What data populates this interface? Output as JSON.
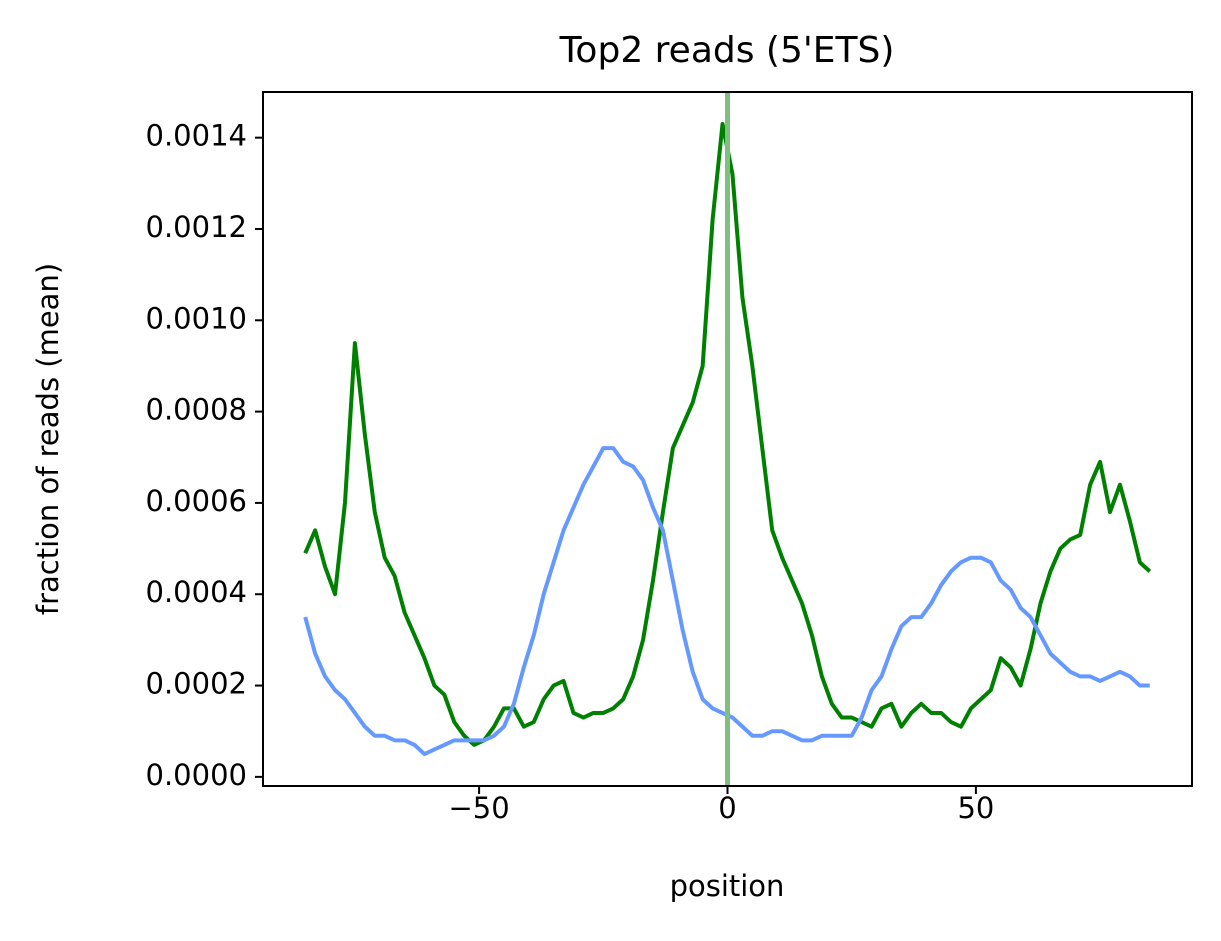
{
  "chart_data": {
    "type": "line",
    "title": "Top2 reads (5'ETS)",
    "x_label": "position",
    "y_label": "fraction of reads (mean)",
    "x": [
      -85,
      -83,
      -81,
      -79,
      -77,
      -75,
      -73,
      -71,
      -69,
      -67,
      -65,
      -63,
      -61,
      -59,
      -57,
      -55,
      -53,
      -51,
      -49,
      -47,
      -45,
      -43,
      -41,
      -39,
      -37,
      -35,
      -33,
      -31,
      -29,
      -27,
      -25,
      -23,
      -21,
      -19,
      -17,
      -15,
      -13,
      -11,
      -9,
      -7,
      -5,
      -3,
      -1,
      1,
      3,
      5,
      7,
      9,
      11,
      13,
      15,
      17,
      19,
      21,
      23,
      25,
      27,
      29,
      31,
      33,
      35,
      37,
      39,
      41,
      43,
      45,
      47,
      49,
      51,
      53,
      55,
      57,
      59,
      61,
      63,
      65,
      67,
      69,
      71,
      73,
      75,
      77,
      79,
      81,
      83,
      85
    ],
    "series": [
      {
        "color": "#008000",
        "values": [
          0.00049,
          0.00054,
          0.00046,
          0.0004,
          0.0006,
          0.00095,
          0.00075,
          0.00058,
          0.00048,
          0.00044,
          0.00036,
          0.00031,
          0.00026,
          0.0002,
          0.00018,
          0.00012,
          9e-05,
          7e-05,
          8e-05,
          0.00011,
          0.00015,
          0.00015,
          0.00011,
          0.00012,
          0.00017,
          0.0002,
          0.00021,
          0.00014,
          0.00013,
          0.00014,
          0.00014,
          0.00015,
          0.00017,
          0.00022,
          0.0003,
          0.00043,
          0.00058,
          0.00072,
          0.00077,
          0.00082,
          0.0009,
          0.00122,
          0.00143,
          0.00132,
          0.00105,
          0.0009,
          0.00072,
          0.00054,
          0.00048,
          0.00043,
          0.00038,
          0.00031,
          0.00022,
          0.00016,
          0.00013,
          0.00013,
          0.00012,
          0.00011,
          0.00015,
          0.00016,
          0.00011,
          0.00014,
          0.00016,
          0.00014,
          0.00014,
          0.00012,
          0.00011,
          0.00015,
          0.00017,
          0.00019,
          0.00026,
          0.00024,
          0.0002,
          0.00028,
          0.00038,
          0.00045,
          0.0005,
          0.00052,
          0.00053,
          0.00064,
          0.00069,
          0.00058,
          0.00064,
          0.00056,
          0.00047,
          0.00045
        ]
      },
      {
        "color": "#6699ff",
        "values": [
          0.00035,
          0.00027,
          0.00022,
          0.00019,
          0.00017,
          0.00014,
          0.00011,
          9e-05,
          9e-05,
          8e-05,
          8e-05,
          7e-05,
          5e-05,
          6e-05,
          7e-05,
          8e-05,
          8e-05,
          8e-05,
          8e-05,
          9e-05,
          0.00011,
          0.00016,
          0.00024,
          0.00031,
          0.0004,
          0.00047,
          0.00054,
          0.00059,
          0.00064,
          0.00068,
          0.00072,
          0.00072,
          0.00069,
          0.00068,
          0.00065,
          0.00059,
          0.00054,
          0.00043,
          0.00032,
          0.00023,
          0.00017,
          0.00015,
          0.00014,
          0.00013,
          0.00011,
          9e-05,
          9e-05,
          0.0001,
          0.0001,
          9e-05,
          8e-05,
          8e-05,
          9e-05,
          9e-05,
          9e-05,
          9e-05,
          0.00013,
          0.00019,
          0.00022,
          0.00028,
          0.00033,
          0.00035,
          0.00035,
          0.00038,
          0.00042,
          0.00045,
          0.00047,
          0.00048,
          0.00048,
          0.00047,
          0.00043,
          0.00041,
          0.00037,
          0.00035,
          0.00031,
          0.00027,
          0.00025,
          0.00023,
          0.00022,
          0.00022,
          0.00021,
          0.00022,
          0.00023,
          0.00022,
          0.0002,
          0.0002
        ]
      }
    ],
    "vline": {
      "x": 0,
      "color": "#7fbf7f"
    },
    "xlim": [
      -93.5,
      93.5
    ],
    "xticks": [
      {
        "value": -50,
        "label": "−50"
      },
      0,
      50
    ],
    "ylim": [
      -2e-05,
      0.0015
    ],
    "yticks": [
      {
        "value": 0,
        "label": "0.0000"
      },
      {
        "value": 0.0002,
        "label": "0.0002"
      },
      {
        "value": 0.0004,
        "label": "0.0004"
      },
      {
        "value": 0.0006,
        "label": "0.0006"
      },
      {
        "value": 0.0008,
        "label": "0.0008"
      },
      {
        "value": 0.001,
        "label": "0.0010"
      },
      {
        "value": 0.0012,
        "label": "0.0012"
      },
      {
        "value": 0.0014,
        "label": "0.0014"
      }
    ],
    "grid": false
  }
}
